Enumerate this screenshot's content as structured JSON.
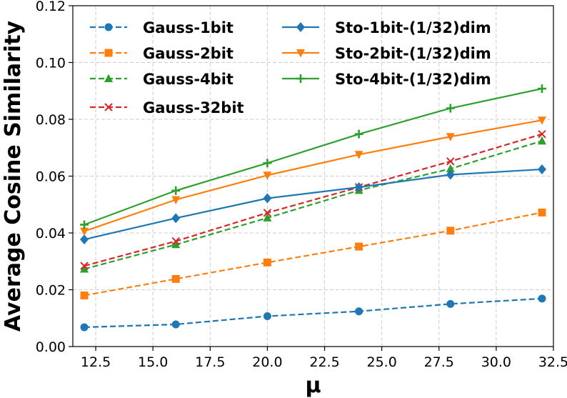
{
  "chart_data": {
    "type": "line",
    "title": "",
    "xlabel": "μ",
    "ylabel": "Average Cosine Similarity",
    "xlim": [
      11.5,
      32.5
    ],
    "ylim": [
      0.0,
      0.12
    ],
    "xticks": [
      12.5,
      15.0,
      17.5,
      20.0,
      22.5,
      25.0,
      27.5,
      30.0,
      32.5
    ],
    "xtick_labels": [
      "12.5",
      "15.0",
      "17.5",
      "20.0",
      "22.5",
      "25.0",
      "27.5",
      "30.0",
      "32.5"
    ],
    "yticks": [
      0.0,
      0.02,
      0.04,
      0.06,
      0.08,
      0.1,
      0.12
    ],
    "ytick_labels": [
      "0.00",
      "0.02",
      "0.04",
      "0.06",
      "0.08",
      "0.10",
      "0.12"
    ],
    "grid": true,
    "legend_position": "top",
    "x": [
      12,
      16,
      20,
      24,
      28,
      32
    ],
    "series": [
      {
        "name": "Gauss-1bit",
        "color": "#1f77b4",
        "dash": "dashed",
        "marker": "circle",
        "values": [
          0.0068,
          0.0078,
          0.0107,
          0.0124,
          0.015,
          0.0169
        ]
      },
      {
        "name": "Gauss-2bit",
        "color": "#ff7f0e",
        "dash": "dashed",
        "marker": "square",
        "values": [
          0.018,
          0.0238,
          0.0296,
          0.0352,
          0.0408,
          0.0472
        ]
      },
      {
        "name": "Gauss-4bit",
        "color": "#2ca02c",
        "dash": "dashed",
        "marker": "triangle-up",
        "values": [
          0.0273,
          0.0359,
          0.0453,
          0.055,
          0.0626,
          0.0724
        ]
      },
      {
        "name": "Gauss-32bit",
        "color": "#d62728",
        "dash": "dashed",
        "marker": "x",
        "values": [
          0.0284,
          0.0371,
          0.0471,
          0.0561,
          0.0652,
          0.0748
        ]
      },
      {
        "name": "Sto-1bit-(1/32)dim",
        "color": "#1f77b4",
        "dash": "solid",
        "marker": "diamond",
        "values": [
          0.0377,
          0.0452,
          0.0522,
          0.0561,
          0.0605,
          0.0624
        ]
      },
      {
        "name": "Sto-2bit-(1/32)dim",
        "color": "#ff7f0e",
        "dash": "solid",
        "marker": "triangle-down",
        "values": [
          0.0406,
          0.0517,
          0.0603,
          0.0676,
          0.0739,
          0.0797
        ]
      },
      {
        "name": "Sto-4bit-(1/32)dim",
        "color": "#2ca02c",
        "dash": "solid",
        "marker": "plus",
        "values": [
          0.0429,
          0.0549,
          0.0646,
          0.0748,
          0.0839,
          0.0908
        ]
      }
    ]
  }
}
